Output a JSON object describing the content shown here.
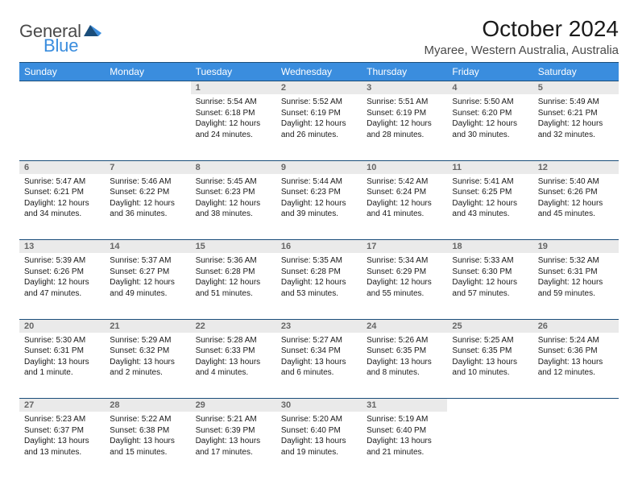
{
  "logo": {
    "text1": "General",
    "text2": "Blue"
  },
  "title": "October 2024",
  "location": "Myaree, Western Australia, Australia",
  "colors": {
    "header_bg": "#3a8dde",
    "header_border": "#1a4d7a",
    "daynum_bg": "#eaeaea",
    "logo_blue": "#3a8dde",
    "logo_grey": "#4a4a4a"
  },
  "dayNames": [
    "Sunday",
    "Monday",
    "Tuesday",
    "Wednesday",
    "Thursday",
    "Friday",
    "Saturday"
  ],
  "weeks": [
    {
      "nums": [
        "",
        "",
        "1",
        "2",
        "3",
        "4",
        "5"
      ],
      "cells": [
        null,
        null,
        {
          "sunrise": "Sunrise: 5:54 AM",
          "sunset": "Sunset: 6:18 PM",
          "day1": "Daylight: 12 hours",
          "day2": "and 24 minutes."
        },
        {
          "sunrise": "Sunrise: 5:52 AM",
          "sunset": "Sunset: 6:19 PM",
          "day1": "Daylight: 12 hours",
          "day2": "and 26 minutes."
        },
        {
          "sunrise": "Sunrise: 5:51 AM",
          "sunset": "Sunset: 6:19 PM",
          "day1": "Daylight: 12 hours",
          "day2": "and 28 minutes."
        },
        {
          "sunrise": "Sunrise: 5:50 AM",
          "sunset": "Sunset: 6:20 PM",
          "day1": "Daylight: 12 hours",
          "day2": "and 30 minutes."
        },
        {
          "sunrise": "Sunrise: 5:49 AM",
          "sunset": "Sunset: 6:21 PM",
          "day1": "Daylight: 12 hours",
          "day2": "and 32 minutes."
        }
      ]
    },
    {
      "nums": [
        "6",
        "7",
        "8",
        "9",
        "10",
        "11",
        "12"
      ],
      "cells": [
        {
          "sunrise": "Sunrise: 5:47 AM",
          "sunset": "Sunset: 6:21 PM",
          "day1": "Daylight: 12 hours",
          "day2": "and 34 minutes."
        },
        {
          "sunrise": "Sunrise: 5:46 AM",
          "sunset": "Sunset: 6:22 PM",
          "day1": "Daylight: 12 hours",
          "day2": "and 36 minutes."
        },
        {
          "sunrise": "Sunrise: 5:45 AM",
          "sunset": "Sunset: 6:23 PM",
          "day1": "Daylight: 12 hours",
          "day2": "and 38 minutes."
        },
        {
          "sunrise": "Sunrise: 5:44 AM",
          "sunset": "Sunset: 6:23 PM",
          "day1": "Daylight: 12 hours",
          "day2": "and 39 minutes."
        },
        {
          "sunrise": "Sunrise: 5:42 AM",
          "sunset": "Sunset: 6:24 PM",
          "day1": "Daylight: 12 hours",
          "day2": "and 41 minutes."
        },
        {
          "sunrise": "Sunrise: 5:41 AM",
          "sunset": "Sunset: 6:25 PM",
          "day1": "Daylight: 12 hours",
          "day2": "and 43 minutes."
        },
        {
          "sunrise": "Sunrise: 5:40 AM",
          "sunset": "Sunset: 6:26 PM",
          "day1": "Daylight: 12 hours",
          "day2": "and 45 minutes."
        }
      ]
    },
    {
      "nums": [
        "13",
        "14",
        "15",
        "16",
        "17",
        "18",
        "19"
      ],
      "cells": [
        {
          "sunrise": "Sunrise: 5:39 AM",
          "sunset": "Sunset: 6:26 PM",
          "day1": "Daylight: 12 hours",
          "day2": "and 47 minutes."
        },
        {
          "sunrise": "Sunrise: 5:37 AM",
          "sunset": "Sunset: 6:27 PM",
          "day1": "Daylight: 12 hours",
          "day2": "and 49 minutes."
        },
        {
          "sunrise": "Sunrise: 5:36 AM",
          "sunset": "Sunset: 6:28 PM",
          "day1": "Daylight: 12 hours",
          "day2": "and 51 minutes."
        },
        {
          "sunrise": "Sunrise: 5:35 AM",
          "sunset": "Sunset: 6:28 PM",
          "day1": "Daylight: 12 hours",
          "day2": "and 53 minutes."
        },
        {
          "sunrise": "Sunrise: 5:34 AM",
          "sunset": "Sunset: 6:29 PM",
          "day1": "Daylight: 12 hours",
          "day2": "and 55 minutes."
        },
        {
          "sunrise": "Sunrise: 5:33 AM",
          "sunset": "Sunset: 6:30 PM",
          "day1": "Daylight: 12 hours",
          "day2": "and 57 minutes."
        },
        {
          "sunrise": "Sunrise: 5:32 AM",
          "sunset": "Sunset: 6:31 PM",
          "day1": "Daylight: 12 hours",
          "day2": "and 59 minutes."
        }
      ]
    },
    {
      "nums": [
        "20",
        "21",
        "22",
        "23",
        "24",
        "25",
        "26"
      ],
      "cells": [
        {
          "sunrise": "Sunrise: 5:30 AM",
          "sunset": "Sunset: 6:31 PM",
          "day1": "Daylight: 13 hours",
          "day2": "and 1 minute."
        },
        {
          "sunrise": "Sunrise: 5:29 AM",
          "sunset": "Sunset: 6:32 PM",
          "day1": "Daylight: 13 hours",
          "day2": "and 2 minutes."
        },
        {
          "sunrise": "Sunrise: 5:28 AM",
          "sunset": "Sunset: 6:33 PM",
          "day1": "Daylight: 13 hours",
          "day2": "and 4 minutes."
        },
        {
          "sunrise": "Sunrise: 5:27 AM",
          "sunset": "Sunset: 6:34 PM",
          "day1": "Daylight: 13 hours",
          "day2": "and 6 minutes."
        },
        {
          "sunrise": "Sunrise: 5:26 AM",
          "sunset": "Sunset: 6:35 PM",
          "day1": "Daylight: 13 hours",
          "day2": "and 8 minutes."
        },
        {
          "sunrise": "Sunrise: 5:25 AM",
          "sunset": "Sunset: 6:35 PM",
          "day1": "Daylight: 13 hours",
          "day2": "and 10 minutes."
        },
        {
          "sunrise": "Sunrise: 5:24 AM",
          "sunset": "Sunset: 6:36 PM",
          "day1": "Daylight: 13 hours",
          "day2": "and 12 minutes."
        }
      ]
    },
    {
      "nums": [
        "27",
        "28",
        "29",
        "30",
        "31",
        "",
        ""
      ],
      "cells": [
        {
          "sunrise": "Sunrise: 5:23 AM",
          "sunset": "Sunset: 6:37 PM",
          "day1": "Daylight: 13 hours",
          "day2": "and 13 minutes."
        },
        {
          "sunrise": "Sunrise: 5:22 AM",
          "sunset": "Sunset: 6:38 PM",
          "day1": "Daylight: 13 hours",
          "day2": "and 15 minutes."
        },
        {
          "sunrise": "Sunrise: 5:21 AM",
          "sunset": "Sunset: 6:39 PM",
          "day1": "Daylight: 13 hours",
          "day2": "and 17 minutes."
        },
        {
          "sunrise": "Sunrise: 5:20 AM",
          "sunset": "Sunset: 6:40 PM",
          "day1": "Daylight: 13 hours",
          "day2": "and 19 minutes."
        },
        {
          "sunrise": "Sunrise: 5:19 AM",
          "sunset": "Sunset: 6:40 PM",
          "day1": "Daylight: 13 hours",
          "day2": "and 21 minutes."
        },
        null,
        null
      ]
    }
  ]
}
